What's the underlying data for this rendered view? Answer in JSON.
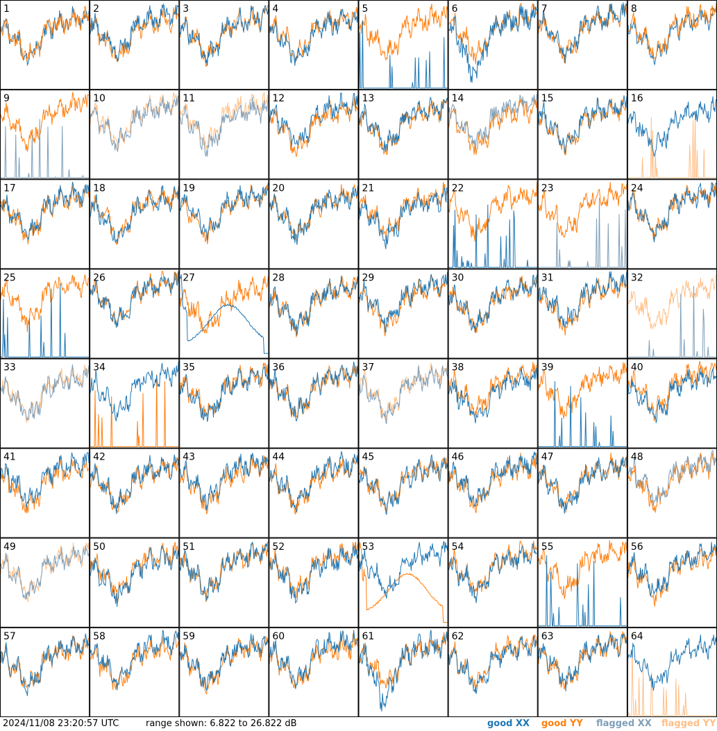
{
  "chart_data": {
    "type": "line",
    "panel_labels": [
      "1",
      "2",
      "3",
      "4",
      "5",
      "6",
      "7",
      "8",
      "9",
      "10",
      "11",
      "12",
      "13",
      "14",
      "15",
      "16",
      "17",
      "18",
      "19",
      "20",
      "21",
      "22",
      "23",
      "24",
      "25",
      "26",
      "27",
      "28",
      "29",
      "30",
      "31",
      "32",
      "33",
      "34",
      "35",
      "36",
      "37",
      "38",
      "39",
      "40",
      "41",
      "42",
      "43",
      "44",
      "45",
      "46",
      "47",
      "48",
      "49",
      "50",
      "51",
      "52",
      "53",
      "54",
      "55",
      "56",
      "57",
      "58",
      "59",
      "60",
      "61",
      "62",
      "63",
      "64"
    ],
    "y_range_db": [
      6.822,
      26.822
    ],
    "grid": false,
    "legend_placement": "bottom-right",
    "series": [
      {
        "name": "good XX",
        "color": "#1f77b4"
      },
      {
        "name": "good YY",
        "color": "#ff7f0e"
      },
      {
        "name": "flagged XX",
        "color": "#7f9fb9"
      },
      {
        "name": "flagged YY",
        "color": "#ffbf87"
      }
    ],
    "panel_status": [
      [
        "good",
        "good"
      ],
      [
        "good",
        "good"
      ],
      [
        "good",
        "good"
      ],
      [
        "good",
        "good"
      ],
      [
        "good",
        "good"
      ],
      [
        "good",
        "good"
      ],
      [
        "good",
        "good"
      ],
      [
        "good",
        "good"
      ],
      [
        "flagged",
        "good"
      ],
      [
        "flagged",
        "flagged"
      ],
      [
        "flagged",
        "flagged"
      ],
      [
        "good",
        "good"
      ],
      [
        "good",
        "good"
      ],
      [
        "flagged",
        "good"
      ],
      [
        "good",
        "good"
      ],
      [
        "good",
        "flagged"
      ],
      [
        "good",
        "good"
      ],
      [
        "good",
        "good"
      ],
      [
        "good",
        "good"
      ],
      [
        "good",
        "good"
      ],
      [
        "good",
        "good"
      ],
      [
        "good",
        "good"
      ],
      [
        "flagged",
        "good"
      ],
      [
        "good",
        "good"
      ],
      [
        "good",
        "good"
      ],
      [
        "good",
        "good"
      ],
      [
        "good",
        "good"
      ],
      [
        "good",
        "good"
      ],
      [
        "good",
        "good"
      ],
      [
        "good",
        "good"
      ],
      [
        "good",
        "good"
      ],
      [
        "flagged",
        "flagged"
      ],
      [
        "flagged",
        "flagged"
      ],
      [
        "good",
        "good"
      ],
      [
        "good",
        "good"
      ],
      [
        "good",
        "good"
      ],
      [
        "flagged",
        "flagged"
      ],
      [
        "good",
        "good"
      ],
      [
        "good",
        "good"
      ],
      [
        "good",
        "good"
      ],
      [
        "good",
        "good"
      ],
      [
        "good",
        "good"
      ],
      [
        "good",
        "good"
      ],
      [
        "good",
        "good"
      ],
      [
        "good",
        "good"
      ],
      [
        "good",
        "good"
      ],
      [
        "good",
        "good"
      ],
      [
        "flagged",
        "good"
      ],
      [
        "flagged",
        "flagged"
      ],
      [
        "good",
        "good"
      ],
      [
        "good",
        "good"
      ],
      [
        "good",
        "good"
      ],
      [
        "good",
        "good"
      ],
      [
        "good",
        "good"
      ],
      [
        "good",
        "good"
      ],
      [
        "good",
        "good"
      ],
      [
        "good",
        "good"
      ],
      [
        "good",
        "good"
      ],
      [
        "good",
        "good"
      ],
      [
        "good",
        "good"
      ],
      [
        "good",
        "good"
      ],
      [
        "good",
        "good"
      ],
      [
        "good",
        "good"
      ],
      [
        "good",
        "flagged"
      ]
    ],
    "panel_style": [
      "wide",
      "normal",
      "normal",
      "normal",
      "xx_spikes",
      "xx_dip",
      "normal",
      "wide",
      "xx_spikes",
      "normal",
      "normal",
      "normal",
      "normal",
      "normal",
      "normal",
      "yy_spikes",
      "normal",
      "normal",
      "normal",
      "normal",
      "normal",
      "xx_spikes",
      "xx_spikes",
      "normal",
      "xx_spikes",
      "normal",
      "xx_smooth",
      "normal",
      "normal",
      "normal",
      "normal",
      "xx_spikes",
      "normal",
      "yy_spikes",
      "normal",
      "normal",
      "normal",
      "normal",
      "xx_spikes",
      "normal",
      "normal",
      "normal",
      "normal",
      "normal",
      "normal",
      "normal",
      "normal",
      "normal",
      "normal",
      "normal",
      "normal",
      "normal",
      "yy_smooth",
      "normal",
      "xx_spikes",
      "normal",
      "normal",
      "normal",
      "normal",
      "normal",
      "xx_dip",
      "normal",
      "normal",
      "yy_spikes"
    ]
  },
  "footer": {
    "timestamp": "2024/11/08 23:20:57 UTC",
    "range_text": "range shown: 6.822 to 26.822 dB",
    "legend": {
      "good_xx": "good XX",
      "good_yy": "good YY",
      "flagged_xx": "flagged XX",
      "flagged_yy": "flagged YY"
    }
  }
}
